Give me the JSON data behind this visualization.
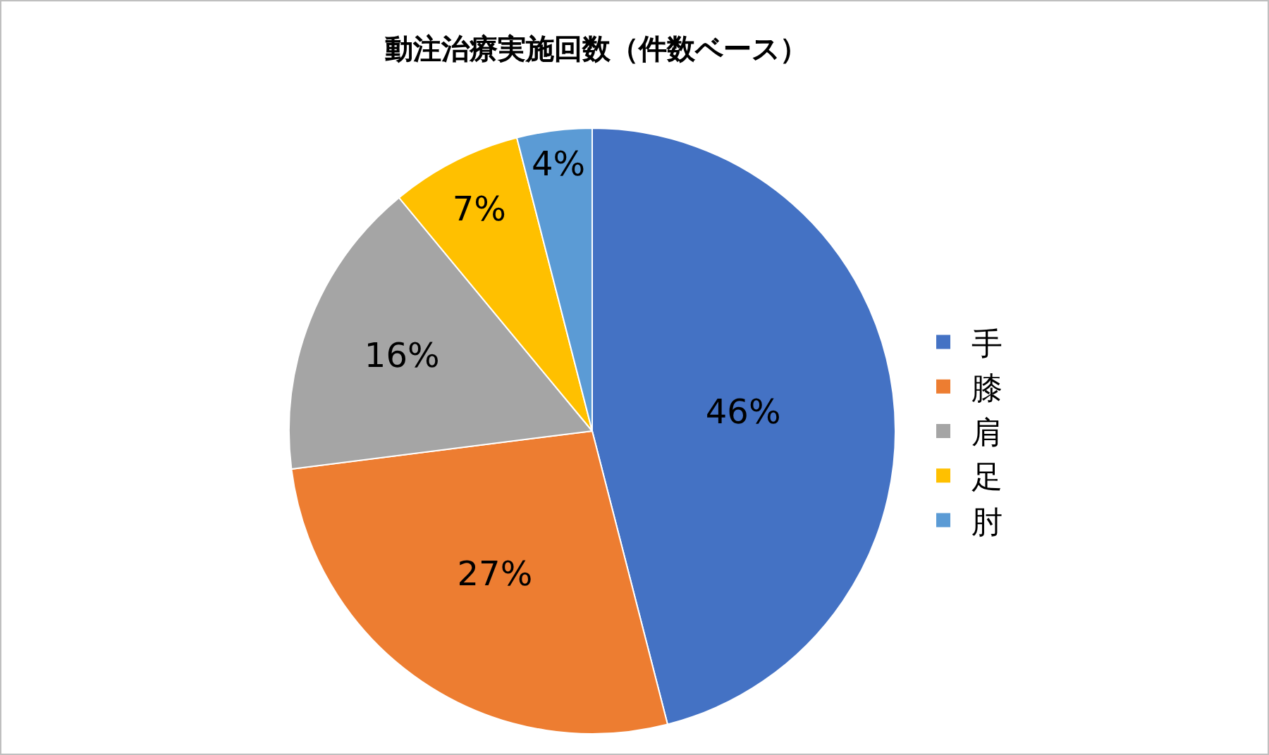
{
  "chart_data": {
    "type": "pie",
    "title": "動注治療実施回数（件数ベース）",
    "categories": [
      "手",
      "膝",
      "肩",
      "足",
      "肘"
    ],
    "values": [
      46,
      27,
      16,
      7,
      4
    ],
    "value_labels": [
      "46%",
      "27%",
      "16%",
      "7%",
      "4%"
    ],
    "colors": [
      "#4472c4",
      "#ed7d31",
      "#a5a5a5",
      "#ffc000",
      "#5b9bd5"
    ],
    "legend": "right"
  }
}
